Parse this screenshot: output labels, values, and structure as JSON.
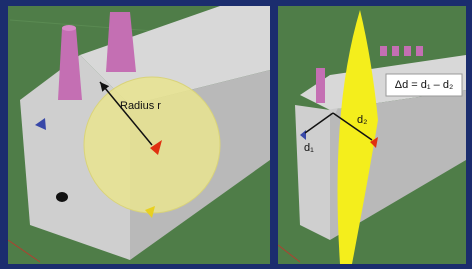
{
  "left_panel": {
    "label": "Radius r"
  },
  "right_panel": {
    "labels": [
      "d₁",
      "d₂"
    ],
    "equation": "Δd = d₁ – d₂"
  }
}
